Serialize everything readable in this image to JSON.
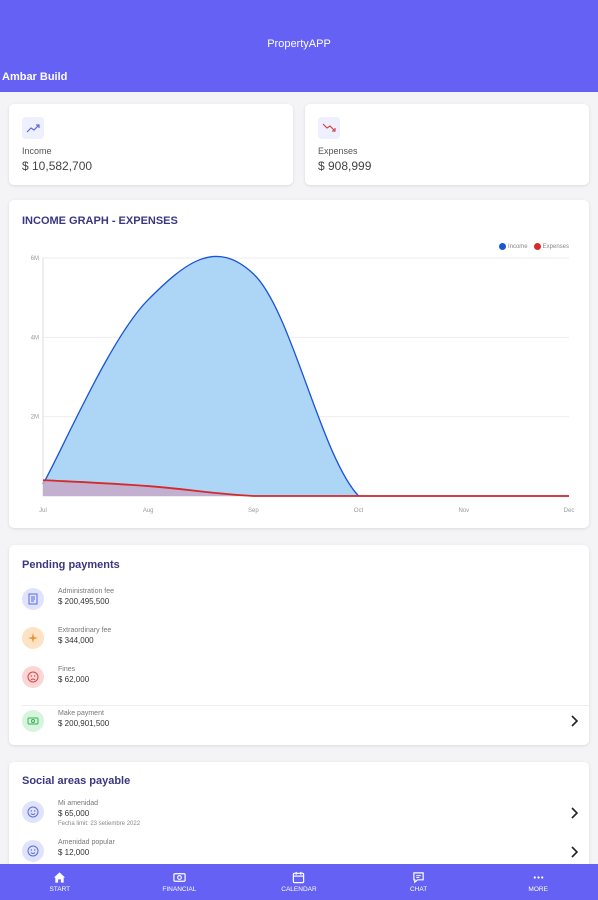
{
  "app": {
    "title": "PropertyAPP",
    "subtitle": "Ambar Build"
  },
  "stats": {
    "income": {
      "label": "Income",
      "value": "$ 10,582,700",
      "icon": "trending-up-icon"
    },
    "expenses": {
      "label": "Expenses",
      "value": "$ 908,999",
      "icon": "trending-down-icon"
    }
  },
  "graph": {
    "title": "INCOME GRAPH - EXPENSES",
    "legend": {
      "income": "Income",
      "expenses": "Expenses"
    }
  },
  "chart_data": {
    "type": "area",
    "x": [
      "Jul",
      "Aug",
      "Sep",
      "Oct",
      "Nov",
      "Dec"
    ],
    "ylim": [
      0,
      6000000
    ],
    "y_ticks": [
      "6M",
      "4M",
      "2M"
    ],
    "series": [
      {
        "name": "Income",
        "color": "#1a54d6",
        "fill": "#a9d3f6",
        "values": [
          300000,
          4950000,
          5600000,
          0,
          0,
          0
        ]
      },
      {
        "name": "Expenses",
        "color": "#d12b2b",
        "fill": "#c7a8c8",
        "values": [
          400000,
          250000,
          0,
          0,
          0,
          0
        ]
      }
    ],
    "grid": true,
    "legend_position": "top-right"
  },
  "pending": {
    "title": "Pending payments",
    "items": [
      {
        "label": "Administration fee",
        "value": "$ 200,495,500",
        "icon": "document-icon",
        "bg": "#dfe3fb",
        "fg": "#5a6be0"
      },
      {
        "label": "Extraordinary fee",
        "value": "$ 344,000",
        "icon": "sparkle-icon",
        "bg": "#fde3c4",
        "fg": "#e69433"
      },
      {
        "label": "Fines",
        "value": "$ 62,000",
        "icon": "sad-face-icon",
        "bg": "#fcd5d5",
        "fg": "#d14848"
      },
      {
        "label": "Make payment",
        "value": "$ 200,901,500",
        "icon": "cash-icon",
        "bg": "#d5f5dc",
        "fg": "#3bb15a"
      }
    ]
  },
  "social": {
    "title": "Social areas payable",
    "items": [
      {
        "label": "Mi amenidad",
        "value": "$ 65,000",
        "note": "Fecha limit: 23 setiembre 2022",
        "icon": "smile-face-icon"
      },
      {
        "label": "Amenidad popular",
        "value": "$ 12,000",
        "note": "",
        "icon": "smile-face-icon"
      }
    ]
  },
  "nav": [
    {
      "label": "START",
      "icon": "home-icon"
    },
    {
      "label": "FINANCIAL",
      "icon": "money-icon"
    },
    {
      "label": "CALENDAR",
      "icon": "calendar-icon"
    },
    {
      "label": "CHAT",
      "icon": "chat-icon"
    },
    {
      "label": "MORE",
      "icon": "more-icon"
    }
  ]
}
